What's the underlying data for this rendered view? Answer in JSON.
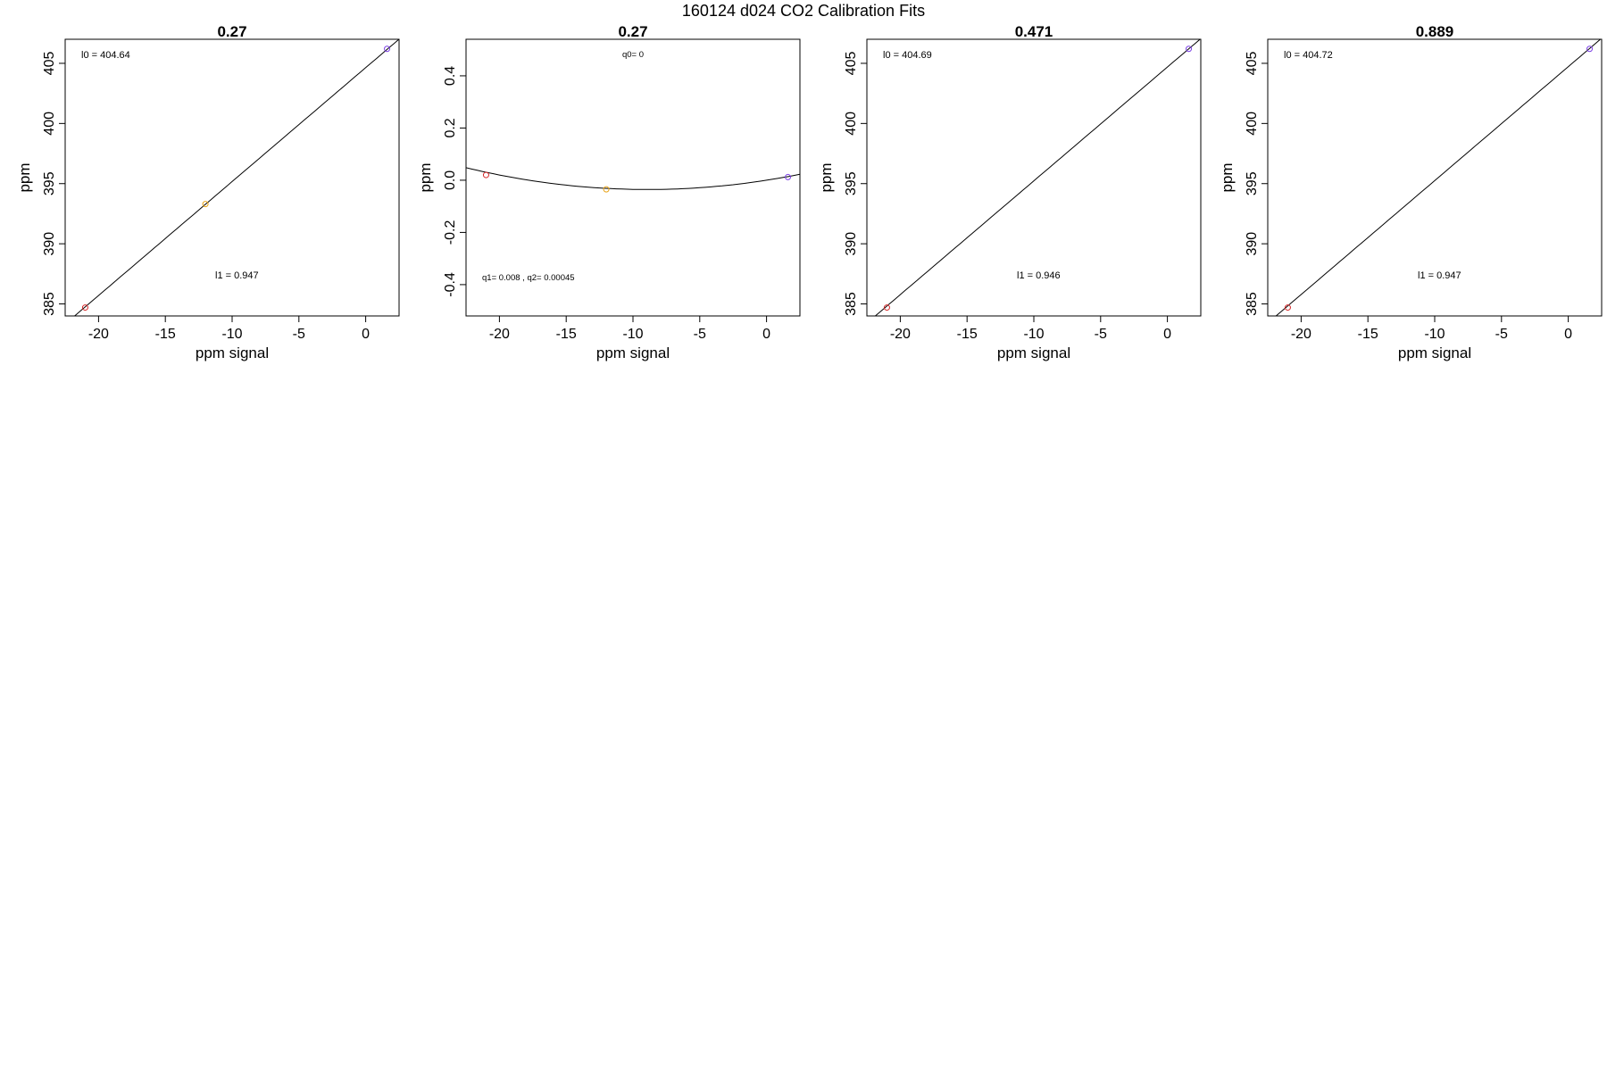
{
  "figure_title": "160124   d024   CO2 Calibration Fits",
  "colors": {
    "low_point": "#d62728",
    "mid_point": "#e8a317",
    "high_point": "#7b3fe4",
    "fit_line": "#000000"
  },
  "chart_data": [
    {
      "type": "scatter",
      "title": "0.27",
      "xlabel": "ppm signal",
      "ylabel": "ppm",
      "xlim": [
        -22.5,
        2.5
      ],
      "ylim": [
        384,
        407
      ],
      "xticks": [
        -20,
        -15,
        -10,
        -5,
        0
      ],
      "yticks": [
        385,
        390,
        395,
        400,
        405
      ],
      "points": [
        {
          "x": -21.0,
          "y": 384.7,
          "color": "low"
        },
        {
          "x": -12.0,
          "y": 393.3,
          "color": "mid"
        },
        {
          "x": 1.6,
          "y": 406.2,
          "color": "high"
        }
      ],
      "fit": {
        "kind": "linear",
        "intercept": 404.64,
        "slope": 0.947
      },
      "annotations": [
        {
          "text": "l0 =  404.64",
          "pos": "top-left"
        },
        {
          "text": "l1 =  0.947",
          "pos": "middle"
        }
      ]
    },
    {
      "type": "scatter",
      "title": "0.27",
      "xlabel": "ppm signal",
      "ylabel": "ppm",
      "xlim": [
        -22.5,
        2.5
      ],
      "ylim": [
        -0.52,
        0.54
      ],
      "xticks": [
        -20,
        -15,
        -10,
        -5,
        0
      ],
      "yticks": [
        -0.4,
        -0.2,
        0.0,
        0.2,
        0.4
      ],
      "ytick_labels": [
        "-0.4",
        "-0.2",
        "0.0",
        "0.2",
        "0.4"
      ],
      "points": [
        {
          "x": -21.0,
          "y": 0.02,
          "color": "low"
        },
        {
          "x": -12.0,
          "y": -0.035,
          "color": "mid"
        },
        {
          "x": 1.6,
          "y": 0.012,
          "color": "high"
        }
      ],
      "fit": {
        "kind": "quadratic",
        "q0": 0,
        "q1": 0.008,
        "q2": 0.00045
      },
      "annotations": [
        {
          "text": "q0= 0",
          "pos": "top-center"
        },
        {
          "text": "q1= 0.008 , q2= 0.00045",
          "pos": "bottom-left"
        }
      ]
    },
    {
      "type": "scatter",
      "title": "0.471",
      "xlabel": "ppm signal",
      "ylabel": "ppm",
      "xlim": [
        -22.5,
        2.5
      ],
      "ylim": [
        384,
        407
      ],
      "xticks": [
        -20,
        -15,
        -10,
        -5,
        0
      ],
      "yticks": [
        385,
        390,
        395,
        400,
        405
      ],
      "points": [
        {
          "x": -21.0,
          "y": 384.7,
          "color": "low"
        },
        {
          "x": 1.6,
          "y": 406.2,
          "color": "high"
        }
      ],
      "fit": {
        "kind": "linear",
        "intercept": 404.69,
        "slope": 0.946
      },
      "annotations": [
        {
          "text": "l0 =  404.69",
          "pos": "top-left"
        },
        {
          "text": "l1 =  0.946",
          "pos": "middle"
        }
      ]
    },
    {
      "type": "scatter",
      "title": "0.889",
      "xlabel": "ppm signal",
      "ylabel": "ppm",
      "xlim": [
        -22.5,
        2.5
      ],
      "ylim": [
        384,
        407
      ],
      "xticks": [
        -20,
        -15,
        -10,
        -5,
        0
      ],
      "yticks": [
        385,
        390,
        395,
        400,
        405
      ],
      "points": [
        {
          "x": -21.0,
          "y": 384.7,
          "color": "low"
        },
        {
          "x": 1.6,
          "y": 406.2,
          "color": "high"
        }
      ],
      "fit": {
        "kind": "linear",
        "intercept": 404.72,
        "slope": 0.947
      },
      "annotations": [
        {
          "text": "l0 =  404.72",
          "pos": "top-left"
        },
        {
          "text": "l1 =  0.947",
          "pos": "middle"
        }
      ]
    }
  ]
}
